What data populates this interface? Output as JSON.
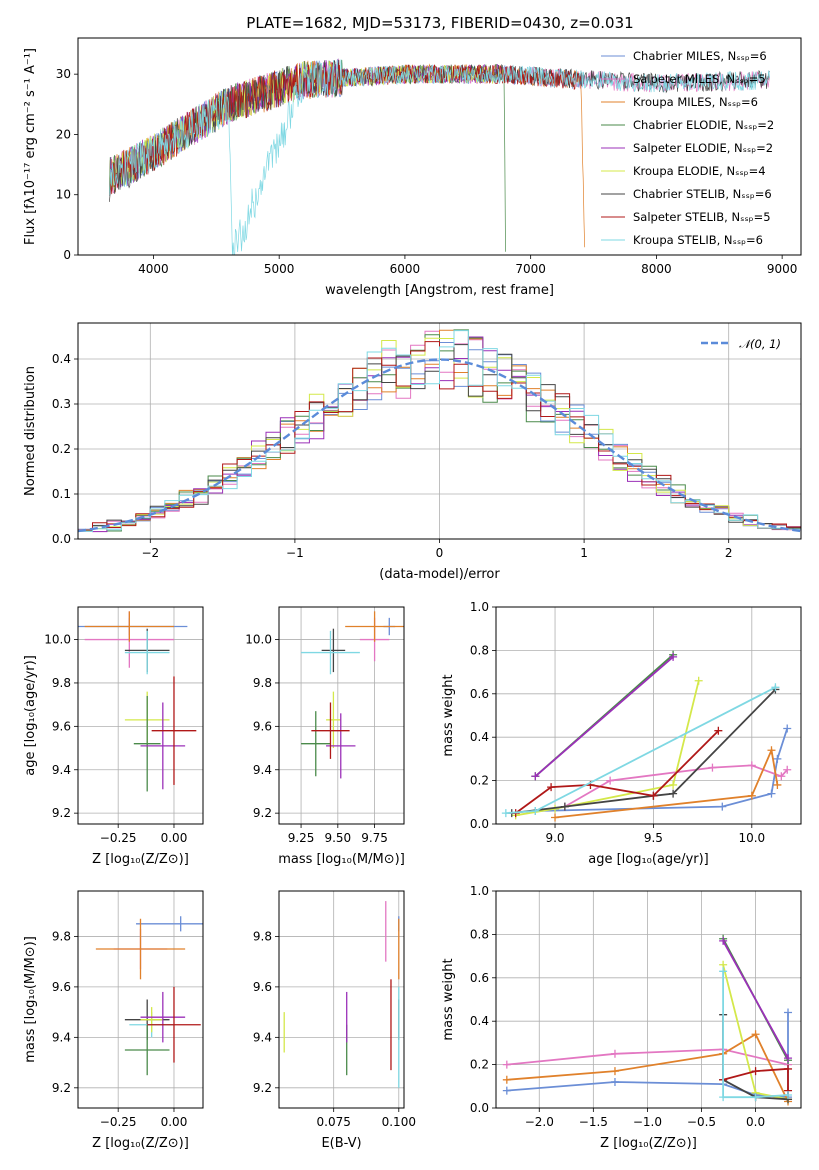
{
  "figure_title": "PLATE=1682, MJD=53173, FIBERID=0430, z=0.031",
  "chart_data": [
    {
      "id": "spectrum",
      "type": "line",
      "xlabel": "wavelength [Angstrom, rest frame]",
      "ylabel": "Flux [fλ10⁻¹⁷ erg cm⁻² s⁻¹ A⁻¹]",
      "xlim": [
        3400,
        9150
      ],
      "ylim": [
        0,
        36
      ],
      "xticks": [
        "4000",
        "5000",
        "6000",
        "7000",
        "8000",
        "9000"
      ],
      "yticks": [
        "0",
        "10",
        "20",
        "30"
      ],
      "grid": false,
      "legend_placement": "top-right",
      "series": [
        {
          "name": "Chabrier MILES, Nₛₛₚ=6",
          "color": "#6b8ed6",
          "x": [
            3650,
            4000,
            4600,
            5200,
            6000,
            6800,
            7400
          ],
          "y": [
            13,
            17,
            25,
            29,
            30,
            30,
            29
          ]
        },
        {
          "name": "Salpeter MILES, Nₛₛₚ=5",
          "color": "#e377c2",
          "x": [
            3650,
            4000,
            4600,
            5200,
            6000,
            6800,
            7500,
            8000,
            8900
          ],
          "y": [
            13,
            17,
            25,
            29,
            30,
            30,
            29,
            28.5,
            29
          ]
        },
        {
          "name": "Kroupa MILES, Nₛₛₚ=6",
          "color": "#e0812b",
          "x": [
            3650,
            4000,
            4600,
            5200,
            6000,
            6800,
            7400,
            7430
          ],
          "y": [
            13,
            17,
            25,
            29,
            30,
            30,
            29,
            0
          ]
        },
        {
          "name": "Chabrier ELODIE, Nₛₛₚ=2",
          "color": "#4a8a4a",
          "x": [
            3650,
            4000,
            4600,
            5200,
            6000,
            6790,
            6800
          ],
          "y": [
            13,
            17,
            25,
            29,
            30,
            30,
            0
          ]
        },
        {
          "name": "Salpeter ELODIE, Nₛₛₚ=2",
          "color": "#9b30b8",
          "x": [
            3650,
            4000,
            4600,
            5200,
            6000,
            6790
          ],
          "y": [
            13,
            17,
            25,
            29,
            30,
            30
          ]
        },
        {
          "name": "Kroupa ELODIE, Nₛₛₚ=4",
          "color": "#d4e84a",
          "x": [
            3650,
            4000,
            4600,
            5200,
            6000,
            6790
          ],
          "y": [
            13,
            17,
            25,
            29,
            30,
            30
          ]
        },
        {
          "name": "Chabrier STELIB, Nₛₛₚ=6",
          "color": "#444444",
          "x": [
            3650,
            4000,
            4600,
            5200,
            6000,
            6800,
            7500,
            8000,
            8900
          ],
          "y": [
            12,
            17,
            25,
            29,
            30,
            30,
            29,
            28.5,
            29
          ]
        },
        {
          "name": "Salpeter STELIB, Nₛₛₚ=5",
          "color": "#b01818",
          "x": [
            3650,
            4000,
            4600,
            5200,
            6000,
            6800,
            7400
          ],
          "y": [
            13,
            17,
            25,
            29,
            30,
            30,
            29
          ]
        },
        {
          "name": "Kroupa STELIB, Nₛₛₚ=6",
          "color": "#7fd8e3",
          "x": [
            3650,
            4000,
            4600,
            4630,
            5200,
            6000,
            6800,
            7500,
            8000,
            8900
          ],
          "y": [
            13,
            17,
            25,
            0,
            29,
            30,
            30,
            29,
            28.5,
            29
          ]
        }
      ]
    },
    {
      "id": "residuals",
      "type": "line",
      "xlabel": "(data-model)/error",
      "ylabel": "Normed distribution",
      "xlim": [
        -2.5,
        2.5
      ],
      "ylim": [
        0,
        0.48
      ],
      "xticks": [
        "−2",
        "−1",
        "0",
        "1",
        "2"
      ],
      "yticks": [
        "0.0",
        "0.1",
        "0.2",
        "0.3",
        "0.4"
      ],
      "grid": true,
      "legend_placement": "top-right",
      "reference": {
        "name": "𝒩(0, 1)",
        "color": "#5b8bd9"
      },
      "bins": [
        -2.5,
        2.5,
        50
      ],
      "histogram_colors": [
        "#6b8ed6",
        "#e377c2",
        "#e0812b",
        "#4a8a4a",
        "#9b30b8",
        "#d4e84a",
        "#444444",
        "#b01818",
        "#7fd8e3"
      ]
    },
    {
      "id": "age_vs_Z",
      "type": "scatter",
      "xlabel": "Z [log₁₀(Z/Z⊙)]",
      "ylabel": "age  [log₁₀(age/yr)]",
      "xlim": [
        -0.43,
        0.13
      ],
      "ylim": [
        9.15,
        10.15
      ],
      "xticks": [
        "−0.25",
        "0.00"
      ],
      "yticks": [
        "9.2",
        "9.4",
        "9.6",
        "9.8",
        "10.0"
      ],
      "grid": true,
      "points": [
        {
          "color": "#6b8ed6",
          "x": -0.2,
          "xerr": 0.26,
          "y": 10.06,
          "yerr": 0.04
        },
        {
          "color": "#e377c2",
          "x": -0.2,
          "xerr": 0.2,
          "y": 10.0,
          "yerr": 0.13
        },
        {
          "color": "#e0812b",
          "x": -0.2,
          "xerr": 0.2,
          "y": 10.06,
          "yerr": 0.07
        },
        {
          "color": "#444444",
          "x": -0.12,
          "xerr": 0.1,
          "y": 9.95,
          "yerr": 0.1
        },
        {
          "color": "#7fd8e3",
          "x": -0.12,
          "xerr": 0.1,
          "y": 9.94,
          "yerr": 0.1
        },
        {
          "color": "#d4e84a",
          "x": -0.12,
          "xerr": 0.1,
          "y": 9.63,
          "yerr": 0.13
        },
        {
          "color": "#4a8a4a",
          "x": -0.12,
          "xerr": 0.06,
          "y": 9.52,
          "yerr": 0.22
        },
        {
          "color": "#9b30b8",
          "x": -0.05,
          "xerr": 0.1,
          "y": 9.51,
          "yerr": 0.2
        },
        {
          "color": "#b01818",
          "x": 0.0,
          "xerr": 0.1,
          "y": 9.58,
          "yerr": 0.25
        }
      ]
    },
    {
      "id": "age_vs_mass",
      "type": "scatter",
      "xlabel": "mass [log₁₀(M/M⊙)]",
      "ylabel": "",
      "xlim": [
        9.1,
        9.95
      ],
      "ylim": [
        9.15,
        10.15
      ],
      "xticks": [
        "9.25",
        "9.50",
        "9.75"
      ],
      "yticks": [
        "9.2",
        "9.4",
        "9.6",
        "9.8",
        "10.0"
      ],
      "grid": true,
      "points": [
        {
          "color": "#6b8ed6",
          "x": 9.85,
          "xerr": 0.04,
          "y": 10.06,
          "yerr": 0.04
        },
        {
          "color": "#e377c2",
          "x": 9.75,
          "xerr": 0.1,
          "y": 10.0,
          "yerr": 0.1
        },
        {
          "color": "#e0812b",
          "x": 9.75,
          "xerr": 0.2,
          "y": 10.06,
          "yerr": 0.07
        },
        {
          "color": "#444444",
          "x": 9.47,
          "xerr": 0.08,
          "y": 9.95,
          "yerr": 0.1
        },
        {
          "color": "#7fd8e3",
          "x": 9.45,
          "xerr": 0.2,
          "y": 9.94,
          "yerr": 0.1
        },
        {
          "color": "#d4e84a",
          "x": 9.47,
          "xerr": 0.05,
          "y": 9.63,
          "yerr": 0.13
        },
        {
          "color": "#4a8a4a",
          "x": 9.35,
          "xerr": 0.1,
          "y": 9.52,
          "yerr": 0.15
        },
        {
          "color": "#9b30b8",
          "x": 9.52,
          "xerr": 0.1,
          "y": 9.51,
          "yerr": 0.15
        },
        {
          "color": "#b01818",
          "x": 9.45,
          "xerr": 0.13,
          "y": 9.58,
          "yerr": 0.13
        }
      ]
    },
    {
      "id": "weight_vs_age",
      "type": "line",
      "xlabel": "age  [log₁₀(age/yr)]",
      "ylabel": "mass weight",
      "xlim": [
        8.7,
        10.25
      ],
      "ylim": [
        0,
        1
      ],
      "xticks": [
        "9.0",
        "9.5",
        "10.0"
      ],
      "yticks": [
        "0.0",
        "0.2",
        "0.4",
        "0.6",
        "0.8",
        "1.0"
      ],
      "grid": true,
      "series": [
        {
          "color": "#6b8ed6",
          "x": [
            8.9,
            9.85,
            10.1,
            10.13,
            10.18
          ],
          "y": [
            0.06,
            0.08,
            0.14,
            0.3,
            0.44
          ]
        },
        {
          "color": "#e377c2",
          "x": [
            9.05,
            9.28,
            9.8,
            10.0,
            10.15,
            10.18
          ],
          "y": [
            0.08,
            0.2,
            0.26,
            0.27,
            0.22,
            0.25
          ]
        },
        {
          "color": "#e0812b",
          "x": [
            9.0,
            10.0,
            10.1,
            10.13
          ],
          "y": [
            0.03,
            0.13,
            0.34,
            0.18
          ]
        },
        {
          "color": "#4a8a4a",
          "x": [
            8.9,
            9.6
          ],
          "y": [
            0.22,
            0.78
          ]
        },
        {
          "color": "#9b30b8",
          "x": [
            8.9,
            9.6
          ],
          "y": [
            0.22,
            0.77
          ]
        },
        {
          "color": "#d4e84a",
          "x": [
            8.8,
            9.0,
            9.6,
            9.73
          ],
          "y": [
            0.04,
            0.07,
            0.18,
            0.66
          ]
        },
        {
          "color": "#444444",
          "x": [
            8.78,
            9.05,
            9.5,
            9.6,
            10.12
          ],
          "y": [
            0.05,
            0.08,
            0.13,
            0.14,
            0.62
          ]
        },
        {
          "color": "#b01818",
          "x": [
            8.8,
            8.98,
            9.18,
            9.5,
            9.83
          ],
          "y": [
            0.05,
            0.17,
            0.18,
            0.13,
            0.43
          ]
        },
        {
          "color": "#7fd8e3",
          "x": [
            8.75,
            8.9,
            10.12
          ],
          "y": [
            0.05,
            0.06,
            0.63
          ]
        }
      ]
    },
    {
      "id": "mass_vs_Z",
      "type": "scatter",
      "xlabel": "Z [log₁₀(Z/Z⊙)]",
      "ylabel": "mass [log₁₀(M/M⊙)]",
      "xlim": [
        -0.43,
        0.13
      ],
      "ylim": [
        9.12,
        9.98
      ],
      "xticks": [
        "−0.25",
        "0.00"
      ],
      "yticks": [
        "9.2",
        "9.4",
        "9.6",
        "9.8"
      ],
      "grid": true,
      "points": [
        {
          "color": "#6b8ed6",
          "x": 0.03,
          "xerr": 0.2,
          "y": 9.85,
          "yerr": 0.03
        },
        {
          "color": "#e377c2",
          "x": -0.15,
          "xerr": 0.12,
          "y": 9.75,
          "yerr": 0.08
        },
        {
          "color": "#e0812b",
          "x": -0.15,
          "xerr": 0.2,
          "y": 9.75,
          "yerr": 0.12
        },
        {
          "color": "#444444",
          "x": -0.12,
          "xerr": 0.1,
          "y": 9.47,
          "yerr": 0.08
        },
        {
          "color": "#7fd8e3",
          "x": -0.1,
          "xerr": 0.1,
          "y": 9.45,
          "yerr": 0.05
        },
        {
          "color": "#d4e84a",
          "x": -0.1,
          "xerr": 0.05,
          "y": 9.47,
          "yerr": 0.05
        },
        {
          "color": "#4a8a4a",
          "x": -0.12,
          "xerr": 0.1,
          "y": 9.35,
          "yerr": 0.1
        },
        {
          "color": "#9b30b8",
          "x": -0.05,
          "xerr": 0.1,
          "y": 9.48,
          "yerr": 0.1
        },
        {
          "color": "#b01818",
          "x": -0.0,
          "xerr": 0.12,
          "y": 9.45,
          "yerr": 0.15
        }
      ]
    },
    {
      "id": "mass_vs_ebv",
      "type": "scatter",
      "xlabel": "E(B-V)",
      "ylabel": "",
      "xlim": [
        0.054,
        0.102
      ],
      "ylim": [
        9.12,
        9.98
      ],
      "xticks": [
        "0.075",
        "0.100"
      ],
      "yticks": [
        "9.2",
        "9.4",
        "9.6",
        "9.8"
      ],
      "grid": true,
      "points": [
        {
          "color": "#6b8ed6",
          "x": 0.1,
          "xerr": 0.0,
          "y": 9.85,
          "yerr": 0.03
        },
        {
          "color": "#e377c2",
          "x": 0.095,
          "xerr": 0.0,
          "y": 9.82,
          "yerr": 0.12
        },
        {
          "color": "#e0812b",
          "x": 0.1,
          "xerr": 0.0,
          "y": 9.75,
          "yerr": 0.12
        },
        {
          "color": "#444444",
          "x": 0.1,
          "xerr": 0.0,
          "y": 9.47,
          "yerr": 0.08
        },
        {
          "color": "#7fd8e3",
          "x": 0.1,
          "xerr": 0.0,
          "y": 9.4,
          "yerr": 0.2
        },
        {
          "color": "#d4e84a",
          "x": 0.056,
          "xerr": 0.0,
          "y": 9.42,
          "yerr": 0.08
        },
        {
          "color": "#4a8a4a",
          "x": 0.08,
          "xerr": 0.0,
          "y": 9.35,
          "yerr": 0.1
        },
        {
          "color": "#9b30b8",
          "x": 0.08,
          "xerr": 0.0,
          "y": 9.48,
          "yerr": 0.1
        },
        {
          "color": "#b01818",
          "x": 0.097,
          "xerr": 0.0,
          "y": 9.45,
          "yerr": 0.18
        }
      ]
    },
    {
      "id": "weight_vs_Z",
      "type": "line",
      "xlabel": "Z [log₁₀(Z/Z⊙)]",
      "ylabel": "mass weight",
      "xlim": [
        -2.4,
        0.42
      ],
      "ylim": [
        0,
        1
      ],
      "xticks": [
        "−2.0",
        "−1.5",
        "−1.0",
        "−0.5",
        "0.0"
      ],
      "yticks": [
        "0.0",
        "0.2",
        "0.4",
        "0.6",
        "0.8",
        "1.0"
      ],
      "grid": true,
      "series": [
        {
          "color": "#6b8ed6",
          "x": [
            -2.3,
            -1.3,
            -0.3,
            0.0,
            0.3,
            0.3
          ],
          "y": [
            0.08,
            0.12,
            0.11,
            0.06,
            0.05,
            0.44
          ]
        },
        {
          "color": "#e377c2",
          "x": [
            -2.3,
            -1.3,
            -0.3,
            0.3
          ],
          "y": [
            0.2,
            0.25,
            0.27,
            0.2
          ]
        },
        {
          "color": "#e0812b",
          "x": [
            -2.3,
            -1.3,
            -0.3,
            0.0,
            0.3
          ],
          "y": [
            0.13,
            0.17,
            0.25,
            0.34,
            0.03
          ]
        },
        {
          "color": "#4a8a4a",
          "x": [
            -0.3,
            0.3
          ],
          "y": [
            0.78,
            0.22
          ]
        },
        {
          "color": "#9b30b8",
          "x": [
            -0.3,
            0.3
          ],
          "y": [
            0.77,
            0.23
          ]
        },
        {
          "color": "#d4e84a",
          "x": [
            -0.3,
            0.0,
            0.3
          ],
          "y": [
            0.66,
            0.07,
            0.04
          ]
        },
        {
          "color": "#444444",
          "x": [
            -0.3,
            -0.3,
            0.0,
            0.3
          ],
          "y": [
            0.43,
            0.13,
            0.05,
            0.04
          ]
        },
        {
          "color": "#b01818",
          "x": [
            -0.3,
            0.0,
            0.3,
            0.3
          ],
          "y": [
            0.13,
            0.17,
            0.18,
            0.08
          ]
        },
        {
          "color": "#7fd8e3",
          "x": [
            -0.3,
            -0.3,
            0.0,
            0.3
          ],
          "y": [
            0.63,
            0.05,
            0.05,
            0.06
          ]
        }
      ]
    }
  ]
}
